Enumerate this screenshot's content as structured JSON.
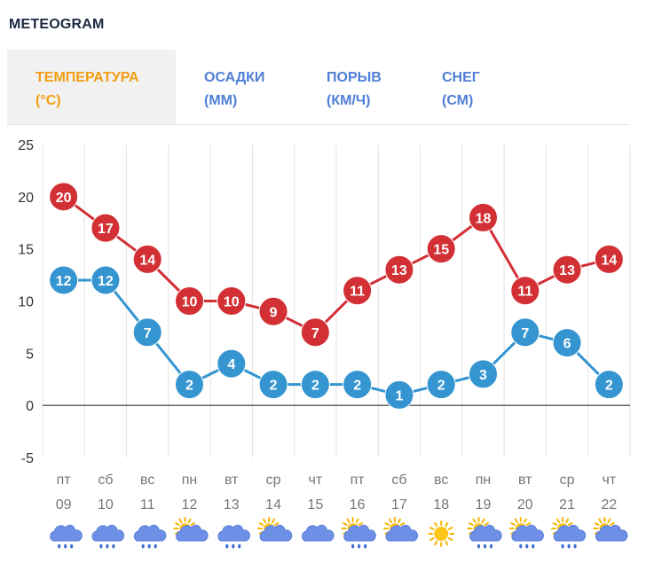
{
  "title": "METEOGRAM",
  "tabs": [
    {
      "label": "ТЕМПЕРАТУРА",
      "unit": "(°C)",
      "active": true
    },
    {
      "label": "ОСАДКИ",
      "unit": "(ММ)",
      "active": false
    },
    {
      "label": "ПОРЫВ",
      "unit": "(КМ/Ч)",
      "active": false
    },
    {
      "label": "СНЕГ",
      "unit": "(СМ)",
      "active": false
    }
  ],
  "colors": {
    "max": "#d23034",
    "min": "#3595d0",
    "active_tab": "#f39c11",
    "inactive_tab": "#4f7fd6"
  },
  "chart_data": {
    "type": "line",
    "title": "",
    "xlabel": "",
    "ylabel": "",
    "ylim": [
      -5,
      25
    ],
    "yticks": [
      25,
      20,
      15,
      10,
      5,
      0,
      -5
    ],
    "grid": true,
    "categories": [
      "09",
      "10",
      "11",
      "12",
      "13",
      "14",
      "15",
      "16",
      "17",
      "18",
      "19",
      "20",
      "21",
      "22"
    ],
    "weekdays": [
      "пт",
      "сб",
      "вс",
      "пн",
      "вт",
      "ср",
      "чт",
      "пт",
      "сб",
      "вс",
      "пн",
      "вт",
      "ср",
      "чт"
    ],
    "weather_icons": [
      "cloud-rain-icon",
      "cloud-drizzle-icon",
      "cloud-rain-icon",
      "partly-cloudy-icon",
      "cloud-rain-icon",
      "partly-cloudy-icon",
      "cloud-icon",
      "sun-cloud-rain-icon",
      "sun-cloud-icon",
      "sun-icon",
      "sun-cloud-rain-icon",
      "sun-cloud-rain-icon",
      "sun-cloud-rain-icon",
      "sun-cloud-icon"
    ],
    "series": [
      {
        "name": "max",
        "color": "#d23034",
        "values": [
          20,
          17,
          14,
          10,
          10,
          9,
          7,
          11,
          13,
          15,
          18,
          11,
          13,
          14
        ]
      },
      {
        "name": "min",
        "color": "#3595d0",
        "values": [
          12,
          12,
          7,
          2,
          4,
          2,
          2,
          2,
          1,
          2,
          3,
          7,
          6,
          2
        ]
      }
    ]
  }
}
